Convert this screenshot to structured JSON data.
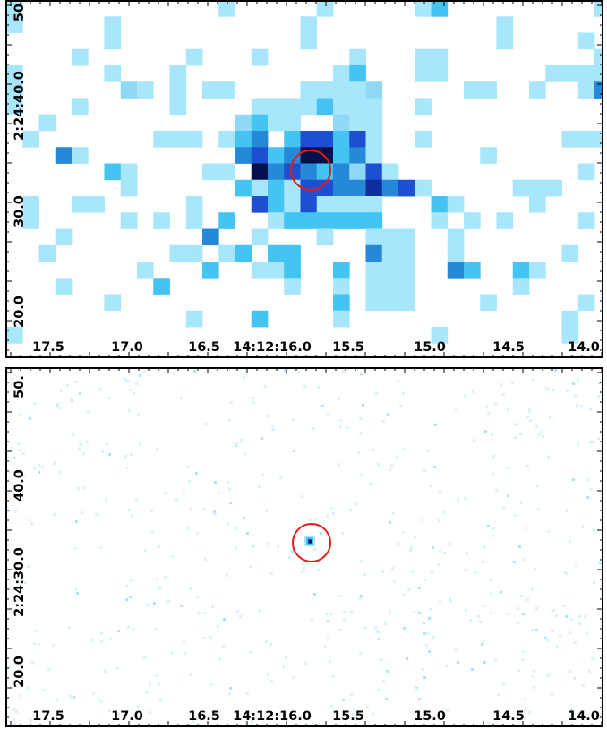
{
  "colors": {
    "faint": "#a8e6fb",
    "light": "#8fd9f7",
    "mid": "#43c4f2",
    "strong": "#2589d8",
    "deep": "#1f4fd1",
    "darker": "#0f2e9e",
    "darkest": "#02104b",
    "marker": "#e11a1a",
    "noise": "#d8f3fb"
  },
  "top_panel": {
    "x_ticks": [
      "17.5",
      "17.0",
      "16.5",
      "14:12:16.0",
      "15.5",
      "15.0",
      "14.5",
      "14.0"
    ],
    "y_ticks": [
      "50",
      "2:24:40.0",
      "30.0",
      "20.0"
    ]
  },
  "bottom_panel": {
    "x_ticks": [
      "17.5",
      "17.0",
      "16.5",
      "14:12:16.0",
      "15.5",
      "15.0",
      "14.5",
      "14.0"
    ],
    "y_ticks": [
      "50.",
      "40.0",
      "2:24:30.0",
      "20.0"
    ]
  }
}
